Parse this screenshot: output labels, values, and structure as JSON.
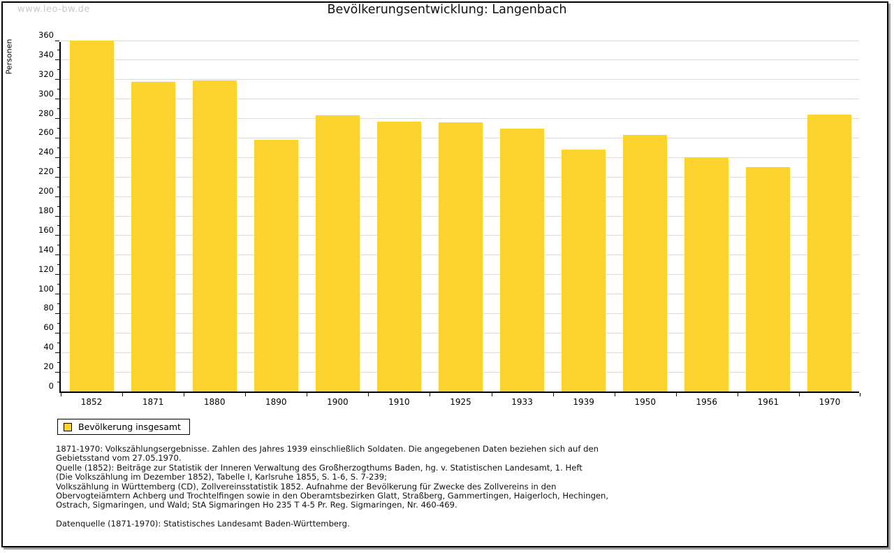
{
  "watermark": "www.leo-bw.de",
  "title": "Bevölkerungsentwicklung: Langenbach",
  "legend": {
    "label": "Bevölkerung insgesamt",
    "swatch_color": "#fdd42e"
  },
  "colors": {
    "bar": "#fdd42e",
    "gridline": "#dcdcdc",
    "axis": "#000000",
    "watermark": "#c9c9c9"
  },
  "chart_data": {
    "type": "bar",
    "title": "Bevölkerungsentwicklung: Langenbach",
    "series_name": "Bevölkerung insgesamt",
    "categories": [
      "1852",
      "1871",
      "1880",
      "1890",
      "1900",
      "1910",
      "1925",
      "1933",
      "1939",
      "1950",
      "1956",
      "1961",
      "1970"
    ],
    "values": [
      360,
      318,
      319,
      258,
      283,
      277,
      276,
      270,
      248,
      263,
      240,
      230,
      284
    ],
    "xlabel": "",
    "ylabel": "Personen",
    "ylim": [
      0,
      360
    ],
    "ytick_step": 20,
    "minor_tick_step": 10,
    "grid": "horizontal",
    "legend_position": "bottom-left",
    "bar_color": "#fdd42e"
  },
  "footer": {
    "lines": [
      "1871-1970: Volkszählungsergebnisse. Zahlen des Jahres 1939 einschließlich Soldaten. Die angegebenen Daten beziehen sich auf den",
      "Gebietsstand vom 27.05.1970.",
      "Quelle (1852): Beiträge zur Statistik der Inneren Verwaltung des Großherzogthums Baden, hg. v. Statistischen Landesamt, 1. Heft",
      "(Die Volkszählung im Dezember 1852), Tabelle I, Karlsruhe 1855, S. 1-6, S. 7-239;",
      "Volkszählung in Württemberg (CD), Zollvereinsstatistik 1852. Aufnahme der Bevölkerung für Zwecke des Zollvereins in den",
      "Obervogteiämtern Achberg und Trochtelfingen sowie in den Oberamtsbezirken Glatt, Straßberg, Gammertingen, Haigerloch, Hechingen,",
      "Ostrach, Sigmaringen, und Wald; StA Sigmaringen Ho 235 T 4-5 Pr. Reg. Sigmaringen, Nr. 460-469."
    ],
    "datasource": "Datenquelle (1871-1970): Statistisches Landesamt Baden-Württemberg."
  }
}
